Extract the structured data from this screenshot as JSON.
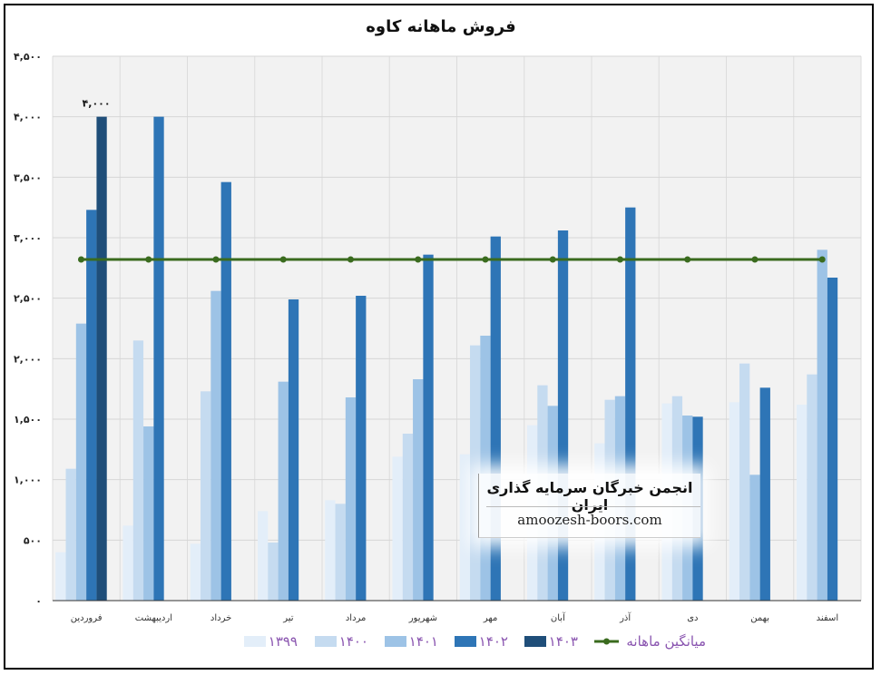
{
  "chart_data": {
    "type": "bar",
    "title": "فروش ماهانه کاوه",
    "categories": [
      "فروردین",
      "اردیبهشت",
      "خرداد",
      "تیر",
      "مرداد",
      "شهریور",
      "مهر",
      "آبان",
      "آذر",
      "دی",
      "بهمن",
      "اسفند"
    ],
    "y_ticks": [
      "۴,۵۰۰",
      "۴,۰۰۰",
      "۳,۵۰۰",
      "۳,۰۰۰",
      "۲,۵۰۰",
      "۲,۰۰۰",
      "۱,۵۰۰",
      "۱,۰۰۰",
      "۵۰۰",
      "۰"
    ],
    "ylim": [
      0,
      4500
    ],
    "grid": true,
    "legend_position": "bottom",
    "series": [
      {
        "name": "۱۳۹۹",
        "color": "#e3eef9",
        "values": [
          400,
          620,
          470,
          740,
          830,
          1190,
          1210,
          1450,
          1300,
          1630,
          1640,
          1620
        ]
      },
      {
        "name": "۱۴۰۰",
        "color": "#c5dbf0",
        "values": [
          1090,
          2150,
          1730,
          480,
          800,
          1380,
          2110,
          1780,
          1660,
          1690,
          1960,
          1870
        ]
      },
      {
        "name": "۱۴۰۱",
        "color": "#9dc3e6",
        "values": [
          2290,
          1440,
          2560,
          1810,
          1680,
          1830,
          2190,
          1610,
          1690,
          1530,
          1040,
          2900
        ]
      },
      {
        "name": "۱۴۰۲",
        "color": "#2e75b6",
        "values": [
          3230,
          4000,
          3460,
          2490,
          2520,
          2860,
          3010,
          3060,
          3250,
          1520,
          1760,
          2670
        ]
      },
      {
        "name": "۱۴۰۳",
        "color": "#1f4e79",
        "values": [
          4000,
          null,
          null,
          null,
          null,
          null,
          null,
          null,
          null,
          null,
          null,
          null
        ]
      }
    ],
    "average_line": {
      "name": "میانگین ماهانه",
      "color": "#3a6b1e",
      "value": 2820
    },
    "data_labels": [
      {
        "series": "۱۴۰۳",
        "category": "فروردین",
        "text": "۴,۰۰۰"
      }
    ]
  },
  "watermark": {
    "title": "انجمن خبرگان سرمایه گذاری ایران",
    "site": "amoozesh-boors.com"
  }
}
